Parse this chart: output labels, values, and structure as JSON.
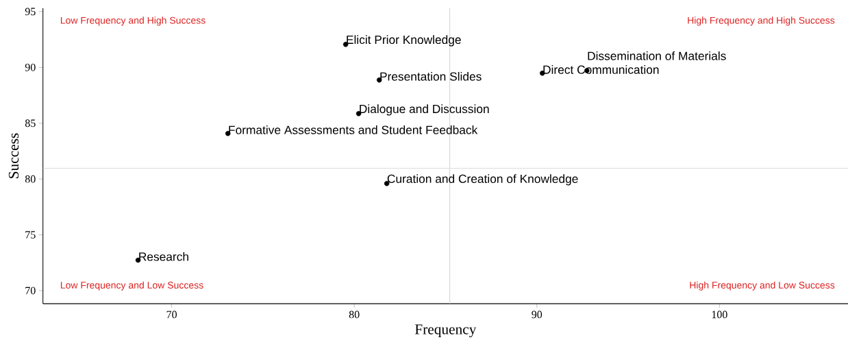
{
  "chart_data": {
    "type": "scatter",
    "xlabel": "Frequency",
    "ylabel": "Success",
    "series": [
      {
        "color": "#000000",
        "x": [
          79.53,
          81.37,
          80.24,
          73.08,
          90.3,
          92.74,
          81.78,
          68.16
        ],
        "values": [
          92.06,
          88.87,
          85.86,
          84.08,
          89.48,
          89.72,
          79.6,
          72.73
        ]
      }
    ],
    "grid": false,
    "xlim": [
      62.95,
      107.04
    ],
    "ylim": [
      68.83,
      95.3
    ],
    "xticks": [
      70,
      80,
      90,
      100
    ],
    "yticks": [
      70,
      75,
      80,
      85,
      90,
      95
    ],
    "ref_lines": [
      {
        "axis": "x",
        "value": 85.23,
        "color": "#d3d3d3"
      },
      {
        "axis": "y",
        "value": 80.95,
        "color": "#d3d3d3"
      }
    ],
    "annotations": [
      {
        "text": "Elicit Prior Knowledge",
        "x": 79.53,
        "y": 92.06
      },
      {
        "text": "Presentation Slides",
        "x": 81.37,
        "y": 88.87
      },
      {
        "text": "Dialogue and Discussion",
        "x": 80.24,
        "y": 85.86
      },
      {
        "text": "Formative Assessments and Student Feedback",
        "x": 73.08,
        "y": 84.08
      },
      {
        "text": "Direct Communication",
        "x": 90.3,
        "y": 89.48
      },
      {
        "text": "Dissemination of Materials",
        "x": 92.74,
        "y": 89.72
      },
      {
        "text": "Curation and Creation of Knowledge",
        "x": 81.78,
        "y": 79.6
      },
      {
        "text": "Research",
        "x": 68.16,
        "y": 72.73
      },
      "Low Frequency and High Success",
      "High Frequency and High Success",
      "Low Frequency and Low Success",
      "High Frequency and Low Success"
    ]
  }
}
